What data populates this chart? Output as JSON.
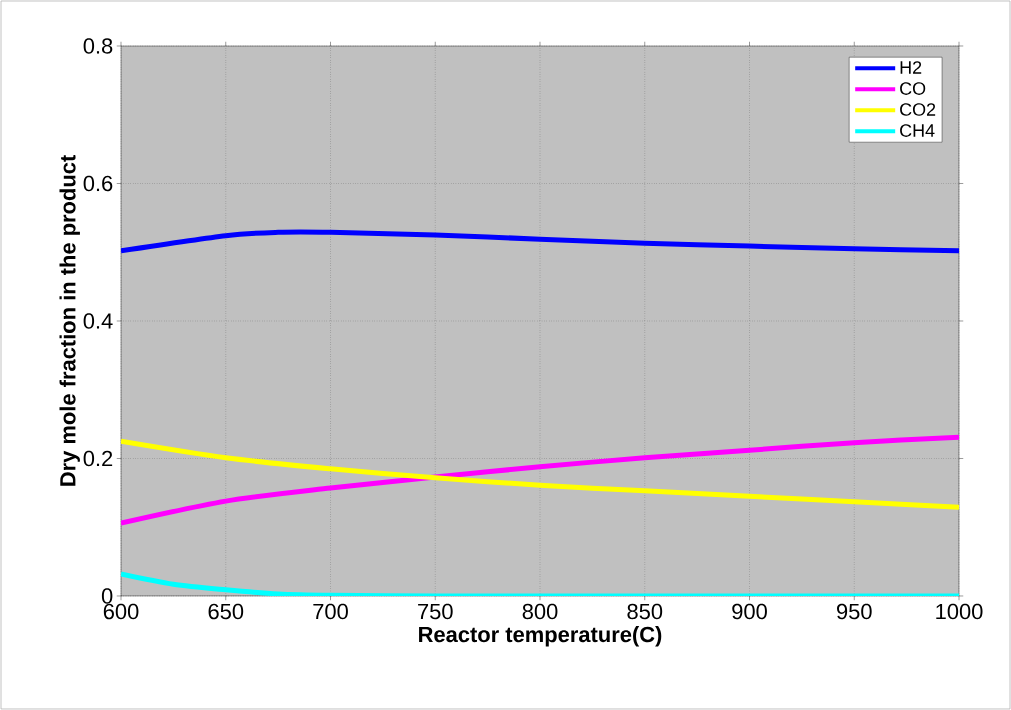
{
  "chart_data": {
    "type": "line",
    "xlabel": "Reactor temperature(C)",
    "ylabel": "Dry mole fraction in the product",
    "xlim": [
      600,
      1000
    ],
    "ylim": [
      0,
      0.8
    ],
    "xticks": [
      600,
      650,
      700,
      750,
      800,
      850,
      900,
      950,
      1000
    ],
    "yticks": [
      0,
      0.2,
      0.4,
      0.6,
      0.8
    ],
    "grid": true,
    "legend": "top right",
    "marker": "none",
    "line_style": "solid",
    "series": [
      {
        "name": "H2",
        "color": "#0000ff",
        "x": [
          600,
          650,
          675,
          700,
          750,
          800,
          850,
          900,
          950,
          1000
        ],
        "values": [
          0.502,
          0.524,
          0.529,
          0.529,
          0.525,
          0.519,
          0.513,
          0.509,
          0.505,
          0.502
        ]
      },
      {
        "name": "CO",
        "color": "#ff00ff",
        "x": [
          600,
          650,
          700,
          750,
          800,
          850,
          900,
          950,
          1000
        ],
        "values": [
          0.106,
          0.138,
          0.157,
          0.173,
          0.188,
          0.201,
          0.212,
          0.223,
          0.231
        ]
      },
      {
        "name": "CO2",
        "color": "#ffff00",
        "x": [
          600,
          650,
          700,
          750,
          800,
          850,
          900,
          950,
          1000
        ],
        "values": [
          0.225,
          0.201,
          0.185,
          0.172,
          0.161,
          0.153,
          0.145,
          0.137,
          0.129
        ]
      },
      {
        "name": "CH4",
        "color": "#00ffff",
        "x": [
          600,
          625,
          650,
          675,
          700,
          750,
          800,
          850,
          900,
          950,
          1000
        ],
        "values": [
          0.032,
          0.017,
          0.009,
          0.003,
          0.001,
          0,
          0,
          0,
          0,
          0,
          0
        ]
      }
    ]
  }
}
